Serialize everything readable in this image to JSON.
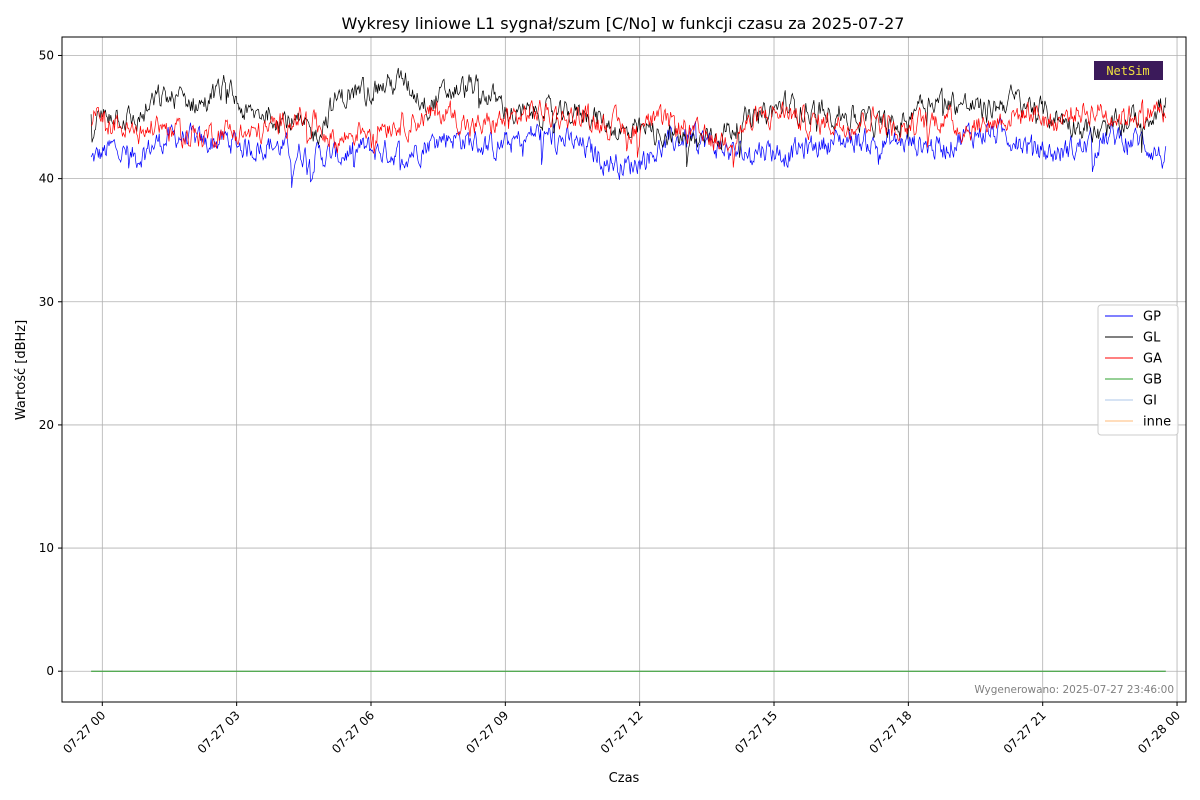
{
  "chart_data": {
    "type": "line",
    "title": "Wykresy liniowe L1 sygnał/szum [C/No] w funkcji czasu za 2025-07-27",
    "xlabel": "Czas",
    "ylabel": "Wartość [dBHz]",
    "ylim": [
      -2.5,
      51.5
    ],
    "xlim_hours": [
      -0.9,
      24.2
    ],
    "x_ticks": [
      {
        "hour": 0,
        "label": "07-27 00"
      },
      {
        "hour": 3,
        "label": "07-27 03"
      },
      {
        "hour": 6,
        "label": "07-27 06"
      },
      {
        "hour": 9,
        "label": "07-27 09"
      },
      {
        "hour": 12,
        "label": "07-27 12"
      },
      {
        "hour": 15,
        "label": "07-27 15"
      },
      {
        "hour": 18,
        "label": "07-27 18"
      },
      {
        "hour": 21,
        "label": "07-27 21"
      },
      {
        "hour": 24,
        "label": "07-28 00"
      }
    ],
    "y_ticks": [
      0,
      10,
      20,
      30,
      40,
      50
    ],
    "grid": true,
    "legend_position": "right",
    "series": [
      {
        "name": "GP",
        "color": "#0000ff",
        "x_hours": [
          -0.25,
          0.25,
          0.75,
          1.25,
          1.75,
          2.25,
          2.75,
          3.25,
          3.75,
          4.25,
          4.75,
          5.25,
          5.75,
          6.25,
          6.75,
          7.25,
          7.75,
          8.25,
          8.75,
          9.25,
          9.75,
          10.25,
          10.75,
          11.25,
          11.75,
          12.25,
          12.75,
          13.25,
          13.75,
          14.25,
          14.75,
          15.25,
          15.75,
          16.25,
          16.75,
          17.25,
          17.75,
          18.25,
          18.75,
          19.25,
          19.75,
          20.25,
          20.75,
          21.25,
          21.75,
          22.25,
          22.75,
          23.25,
          23.75
        ],
        "values": [
          41.5,
          42.5,
          41.8,
          43.0,
          43.5,
          42.8,
          43.2,
          42.5,
          42.8,
          42.2,
          42.0,
          41.8,
          42.5,
          42.2,
          42.0,
          42.8,
          43.5,
          43.0,
          42.5,
          43.0,
          43.8,
          43.2,
          42.5,
          41.5,
          41.0,
          42.0,
          43.0,
          43.5,
          42.5,
          42.0,
          42.5,
          42.0,
          42.5,
          43.0,
          43.2,
          42.8,
          43.0,
          42.8,
          42.5,
          43.5,
          43.8,
          43.5,
          42.5,
          42.0,
          42.5,
          43.0,
          43.5,
          43.0,
          41.5
        ]
      },
      {
        "name": "GL",
        "color": "#000000",
        "x_hours": [
          -0.25,
          0.25,
          0.75,
          1.25,
          1.75,
          2.25,
          2.75,
          3.25,
          3.75,
          4.25,
          4.75,
          5.25,
          5.75,
          6.25,
          6.75,
          7.25,
          7.75,
          8.25,
          8.75,
          9.25,
          9.75,
          10.25,
          10.75,
          11.25,
          11.75,
          12.25,
          12.75,
          13.25,
          13.75,
          14.25,
          14.75,
          15.25,
          15.75,
          16.25,
          16.75,
          17.25,
          17.75,
          18.25,
          18.75,
          19.25,
          19.75,
          20.25,
          20.75,
          21.25,
          21.75,
          22.25,
          22.75,
          23.25,
          23.75
        ],
        "values": [
          44.5,
          45.5,
          44.5,
          46.5,
          46.5,
          46.0,
          47.5,
          45.0,
          45.5,
          44.5,
          43.5,
          46.5,
          47.0,
          47.5,
          48.0,
          46.0,
          47.0,
          47.5,
          46.5,
          45.0,
          45.5,
          45.0,
          45.5,
          44.5,
          43.5,
          44.0,
          43.5,
          43.0,
          43.5,
          44.5,
          45.0,
          46.0,
          45.5,
          45.5,
          45.0,
          44.5,
          44.0,
          46.5,
          46.5,
          46.0,
          45.5,
          46.5,
          46.0,
          45.0,
          44.5,
          43.5,
          44.5,
          45.0,
          46.0
        ]
      },
      {
        "name": "GA",
        "color": "#ff0000",
        "x_hours": [
          -0.25,
          0.25,
          0.75,
          1.25,
          1.75,
          2.25,
          2.75,
          3.25,
          3.75,
          4.25,
          4.75,
          5.25,
          5.75,
          6.25,
          6.75,
          7.25,
          7.75,
          8.25,
          8.75,
          9.25,
          9.75,
          10.25,
          10.75,
          11.25,
          11.75,
          12.25,
          12.75,
          13.25,
          13.75,
          14.25,
          14.75,
          15.25,
          15.75,
          16.25,
          16.75,
          17.25,
          17.75,
          18.25,
          18.75,
          19.25,
          19.75,
          20.25,
          20.75,
          21.25,
          21.75,
          22.25,
          22.75,
          23.25,
          23.75
        ],
        "values": [
          45.0,
          44.5,
          43.5,
          44.5,
          43.5,
          43.5,
          44.0,
          43.5,
          44.0,
          45.0,
          44.5,
          43.0,
          44.0,
          44.5,
          44.5,
          45.0,
          45.5,
          44.0,
          44.5,
          45.0,
          45.5,
          45.0,
          45.0,
          44.5,
          44.0,
          44.5,
          44.5,
          43.5,
          43.0,
          44.0,
          45.0,
          45.5,
          44.5,
          44.5,
          44.5,
          45.0,
          44.0,
          44.5,
          45.0,
          44.0,
          44.5,
          45.0,
          45.5,
          44.5,
          45.5,
          45.5,
          45.0,
          45.5,
          45.5
        ]
      },
      {
        "name": "GB",
        "color": "#2ca02c",
        "x_hours": [
          -0.25,
          23.75
        ],
        "values": [
          0,
          0
        ]
      },
      {
        "name": "GI",
        "color": "#aec7e8",
        "x_hours": [
          -0.25,
          23.75
        ],
        "values": [
          0,
          0
        ]
      },
      {
        "name": "inne",
        "color": "#ffbb78",
        "x_hours": [
          -0.25,
          23.75
        ],
        "values": [
          0,
          0
        ]
      }
    ],
    "annotation": "Wygenerowano: 2025-07-27 23:46:00",
    "logo_text": "NetSim"
  },
  "colors": {
    "grid": "#b0b0b0",
    "axes": "#000000",
    "logo_bg": "#3b1a5a",
    "logo_text": "#f0e040"
  }
}
